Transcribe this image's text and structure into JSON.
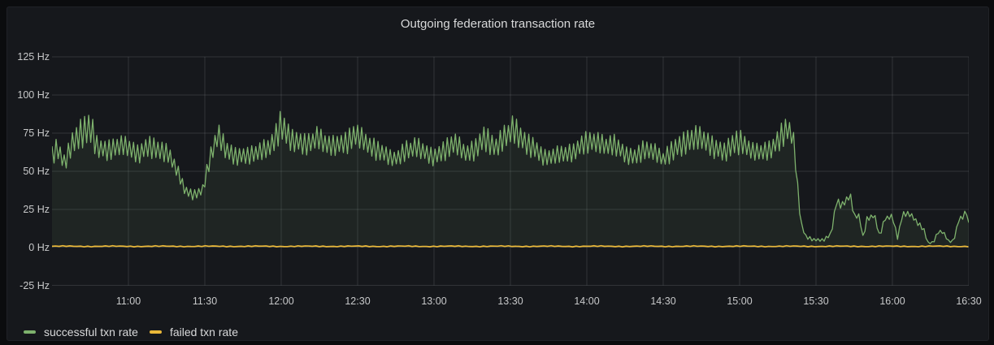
{
  "panel": {
    "title": "Outgoing federation transaction rate"
  },
  "colors": {
    "page_background": "#0b0c0e",
    "panel_background": "#16181c",
    "grid": "rgba(208,214,222,0.15)",
    "axis_text": "#c7c8c9",
    "title_text": "#d8d9da",
    "successful_series": "#7EB26D",
    "failed_series": "#EAB839"
  },
  "chart_data": {
    "type": "line",
    "title": "Outgoing federation transaction rate",
    "grid": true,
    "legend_position": "bottom-left",
    "y_axis": {
      "unit": "Hz",
      "ticks": [
        125,
        100,
        75,
        50,
        25,
        0,
        -25
      ],
      "tick_labels": [
        "125 Hz",
        "100 Hz",
        "75 Hz",
        "50 Hz",
        "25 Hz",
        "0 Hz",
        "-25 Hz"
      ],
      "ylim": [
        -30,
        132
      ]
    },
    "x_axis": {
      "tick_labels": [
        "11:00",
        "11:30",
        "12:00",
        "12:30",
        "13:00",
        "13:30",
        "14:00",
        "14:30",
        "15:00",
        "15:30",
        "16:00",
        "16:30"
      ],
      "tick_interval_minutes": 30,
      "minutes_before_first_tick": 30,
      "total_minutes": 360
    },
    "series": [
      {
        "name": "successful txn rate",
        "color": "#7EB26D",
        "style": "noisy-line",
        "fill_to_zero": true,
        "fill_opacity": 0.09,
        "points_t_base_amp": [
          [
            0,
            62,
            8
          ],
          [
            2,
            66,
            9
          ],
          [
            5,
            55,
            6
          ],
          [
            8,
            68,
            10
          ],
          [
            12,
            74,
            12
          ],
          [
            15,
            80,
            14
          ],
          [
            18,
            66,
            8
          ],
          [
            22,
            64,
            8
          ],
          [
            26,
            66,
            8
          ],
          [
            30,
            65,
            8
          ],
          [
            34,
            61,
            7
          ],
          [
            38,
            68,
            9
          ],
          [
            42,
            64,
            8
          ],
          [
            46,
            60,
            7
          ],
          [
            50,
            47,
            5
          ],
          [
            52,
            38,
            4
          ],
          [
            55,
            35,
            4
          ],
          [
            59,
            37,
            4
          ],
          [
            62,
            58,
            7
          ],
          [
            65,
            73,
            10
          ],
          [
            68,
            64,
            8
          ],
          [
            72,
            60,
            7
          ],
          [
            76,
            61,
            7
          ],
          [
            80,
            62,
            7
          ],
          [
            85,
            64,
            8
          ],
          [
            88,
            72,
            10
          ],
          [
            90,
            81,
            13
          ],
          [
            93,
            74,
            10
          ],
          [
            96,
            70,
            9
          ],
          [
            100,
            67,
            8
          ],
          [
            104,
            71,
            9
          ],
          [
            108,
            67,
            8
          ],
          [
            112,
            68,
            8
          ],
          [
            116,
            70,
            9
          ],
          [
            119,
            74,
            10
          ],
          [
            123,
            68,
            8
          ],
          [
            127,
            64,
            8
          ],
          [
            131,
            62,
            7
          ],
          [
            135,
            58,
            6
          ],
          [
            139,
            63,
            8
          ],
          [
            143,
            65,
            8
          ],
          [
            147,
            62,
            7
          ],
          [
            150,
            60,
            7
          ],
          [
            154,
            64,
            8
          ],
          [
            158,
            68,
            9
          ],
          [
            162,
            61,
            7
          ],
          [
            166,
            64,
            8
          ],
          [
            170,
            74,
            11
          ],
          [
            174,
            65,
            8
          ],
          [
            178,
            72,
            10
          ],
          [
            181,
            77,
            11
          ],
          [
            185,
            70,
            9
          ],
          [
            189,
            67,
            9
          ],
          [
            193,
            59,
            6
          ],
          [
            197,
            59,
            7
          ],
          [
            201,
            61,
            7
          ],
          [
            205,
            63,
            7
          ],
          [
            209,
            70,
            9
          ],
          [
            213,
            69,
            8
          ],
          [
            217,
            66,
            8
          ],
          [
            221,
            67,
            8
          ],
          [
            225,
            62,
            7
          ],
          [
            229,
            60,
            7
          ],
          [
            233,
            64,
            8
          ],
          [
            237,
            61,
            7
          ],
          [
            240,
            58,
            6
          ],
          [
            244,
            65,
            9
          ],
          [
            248,
            69,
            9
          ],
          [
            252,
            71,
            10
          ],
          [
            256,
            70,
            9
          ],
          [
            260,
            65,
            8
          ],
          [
            264,
            64,
            8
          ],
          [
            268,
            69,
            10
          ],
          [
            271,
            68,
            9
          ],
          [
            275,
            62,
            7
          ],
          [
            279,
            63,
            7
          ],
          [
            283,
            66,
            8
          ],
          [
            286,
            73,
            10
          ],
          [
            289,
            78,
            10
          ],
          [
            291,
            72,
            8
          ],
          [
            292.5,
            45,
            4
          ],
          [
            294,
            16,
            2
          ],
          [
            296,
            7,
            1.5
          ],
          [
            299,
            5,
            1.2
          ],
          [
            303,
            5,
            1.2
          ],
          [
            306,
            9,
            1.5
          ],
          [
            308,
            30,
            3
          ],
          [
            310,
            27,
            3
          ],
          [
            312,
            31,
            3
          ],
          [
            313.5,
            34,
            2
          ],
          [
            315,
            20,
            2
          ],
          [
            317,
            21,
            2
          ],
          [
            318.5,
            6,
            1.2
          ],
          [
            320,
            19,
            2
          ],
          [
            323,
            21,
            2
          ],
          [
            325,
            7,
            1.2
          ],
          [
            327,
            19,
            2
          ],
          [
            330,
            20,
            2
          ],
          [
            332,
            6,
            1.2
          ],
          [
            334,
            22,
            2
          ],
          [
            337,
            22,
            2
          ],
          [
            340,
            16,
            2
          ],
          [
            342,
            13,
            2
          ],
          [
            344,
            3,
            1
          ],
          [
            346,
            3,
            1
          ],
          [
            348,
            10,
            1.5
          ],
          [
            350,
            10,
            1.5
          ],
          [
            352,
            4,
            1
          ],
          [
            354,
            4,
            1
          ],
          [
            356,
            18,
            2
          ],
          [
            358,
            21,
            2
          ],
          [
            359,
            25,
            2
          ],
          [
            360,
            15,
            2
          ]
        ]
      },
      {
        "name": "failed txn rate",
        "color": "#EAB839",
        "style": "flat-noisy-line",
        "points_t_base": [
          [
            0,
            0.7
          ],
          [
            360,
            0.7
          ]
        ],
        "noise_amplitude_hz": 0.4
      }
    ]
  }
}
